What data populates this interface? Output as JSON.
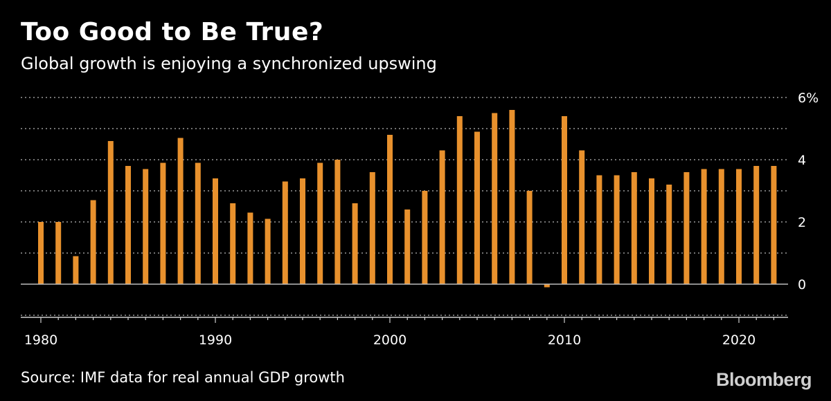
{
  "title": "Too Good to Be True?",
  "subtitle": "Global growth is enjoying a synchronized upswing",
  "source": "Source: IMF data for real annual GDP growth",
  "brand": "Bloomberg",
  "colors": {
    "bar": "#e8912d",
    "background": "#000000",
    "grid": "#9a9a9a",
    "text": "#ffffff"
  },
  "chart_data": {
    "type": "bar",
    "title": "Too Good to Be True?",
    "subtitle": "Global growth is enjoying a synchronized upswing",
    "xlabel": "",
    "ylabel": "",
    "ylim": [
      -1,
      6
    ],
    "xlim": [
      1979.5,
      2023
    ],
    "y_axis_position": "right",
    "grid": "horizontal-dotted",
    "x_ticks": [
      "1980",
      "1990",
      "2000",
      "2010",
      "2020"
    ],
    "y_ticks": [
      "0",
      "2",
      "4",
      "6%"
    ],
    "x": [
      1980,
      1981,
      1982,
      1983,
      1984,
      1985,
      1986,
      1987,
      1988,
      1989,
      1990,
      1991,
      1992,
      1993,
      1994,
      1995,
      1996,
      1997,
      1998,
      1999,
      2000,
      2001,
      2002,
      2003,
      2004,
      2005,
      2006,
      2007,
      2008,
      2009,
      2010,
      2011,
      2012,
      2013,
      2014,
      2015,
      2016,
      2017,
      2018,
      2019,
      2020,
      2021,
      2022
    ],
    "values": [
      2.0,
      2.0,
      0.9,
      2.7,
      4.6,
      3.8,
      3.7,
      3.9,
      4.7,
      3.9,
      3.4,
      2.6,
      2.3,
      2.1,
      3.3,
      3.4,
      3.9,
      4.0,
      2.6,
      3.6,
      4.8,
      2.4,
      3.0,
      4.3,
      5.4,
      4.9,
      5.5,
      5.6,
      3.0,
      -0.1,
      5.4,
      4.3,
      3.5,
      3.5,
      3.6,
      3.4,
      3.2,
      3.6,
      3.7,
      3.7,
      3.7,
      3.8,
      3.8
    ]
  }
}
